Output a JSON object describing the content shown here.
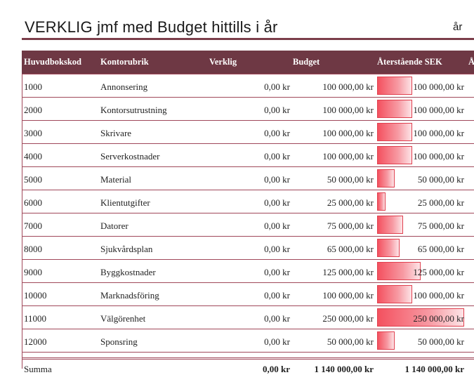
{
  "title": "VERKLIG jmf med Budget hittills i år",
  "year_label": "år",
  "headers": {
    "code": "Huvudbokskod",
    "account": "Kontorubrik",
    "actual": "Verklig",
    "budget": "Budget",
    "remaining": "Återstående SEK",
    "extra": "Å"
  },
  "rows": [
    {
      "code": "1000",
      "account": "Annonsering",
      "actual": "0,00 kr",
      "budget": "100 000,00 kr",
      "remaining": "100 000,00 kr",
      "remaining_value": 100000
    },
    {
      "code": "2000",
      "account": "Kontorsutrustning",
      "actual": "0,00 kr",
      "budget": "100 000,00 kr",
      "remaining": "100 000,00 kr",
      "remaining_value": 100000
    },
    {
      "code": "3000",
      "account": "Skrivare",
      "actual": "0,00 kr",
      "budget": "100 000,00 kr",
      "remaining": "100 000,00 kr",
      "remaining_value": 100000
    },
    {
      "code": "4000",
      "account": "Serverkostnader",
      "actual": "0,00 kr",
      "budget": "100 000,00 kr",
      "remaining": "100 000,00 kr",
      "remaining_value": 100000
    },
    {
      "code": "5000",
      "account": "Material",
      "actual": "0,00 kr",
      "budget": "50 000,00 kr",
      "remaining": "50 000,00 kr",
      "remaining_value": 50000
    },
    {
      "code": "6000",
      "account": "Klientutgifter",
      "actual": "0,00 kr",
      "budget": "25 000,00 kr",
      "remaining": "25 000,00 kr",
      "remaining_value": 25000
    },
    {
      "code": "7000",
      "account": "Datorer",
      "actual": "0,00 kr",
      "budget": "75 000,00 kr",
      "remaining": "75 000,00 kr",
      "remaining_value": 75000
    },
    {
      "code": "8000",
      "account": "Sjukvårdsplan",
      "actual": "0,00 kr",
      "budget": "65 000,00 kr",
      "remaining": "65 000,00 kr",
      "remaining_value": 65000
    },
    {
      "code": "9000",
      "account": "Byggkostnader",
      "actual": "0,00 kr",
      "budget": "125 000,00 kr",
      "remaining": "125 000,00 kr",
      "remaining_value": 125000
    },
    {
      "code": "10000",
      "account": "Marknadsföring",
      "actual": "0,00 kr",
      "budget": "100 000,00 kr",
      "remaining": "100 000,00 kr",
      "remaining_value": 100000
    },
    {
      "code": "11000",
      "account": "Välgörenhet",
      "actual": "0,00 kr",
      "budget": "250 000,00 kr",
      "remaining": "250 000,00 kr",
      "remaining_value": 250000
    },
    {
      "code": "12000",
      "account": "Sponsring",
      "actual": "0,00 kr",
      "budget": "50 000,00 kr",
      "remaining": "50 000,00 kr",
      "remaining_value": 50000
    }
  ],
  "total": {
    "label": "Summa",
    "actual": "0,00 kr",
    "budget": "1 140 000,00 kr",
    "remaining": "1 140 000,00 kr"
  },
  "colors": {
    "header_bg": "#6e3844",
    "rule": "#7b3e4b",
    "bar_start": "#f4515f"
  }
}
